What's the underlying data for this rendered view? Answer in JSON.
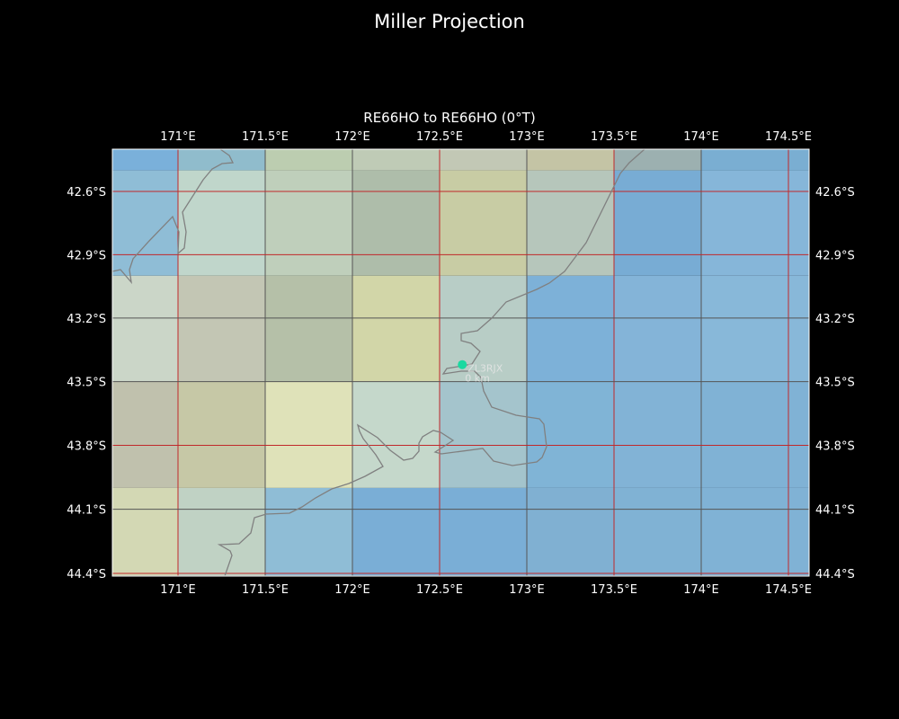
{
  "title": "Miller Projection",
  "subtitle": "RE66HO to RE66HO (0°T)",
  "extent": {
    "lon": [
      170.62,
      174.62
    ],
    "lat": [
      42.4,
      44.41
    ]
  },
  "lon_ticks": [
    {
      "value": 171,
      "label": "171°E",
      "grid": "red"
    },
    {
      "value": 171.5,
      "label": "171.5°E",
      "grid": "dark"
    },
    {
      "value": 172,
      "label": "172°E",
      "grid": "dark"
    },
    {
      "value": 172.5,
      "label": "172.5°E",
      "grid": "red"
    },
    {
      "value": 173,
      "label": "173°E",
      "grid": "dark"
    },
    {
      "value": 173.5,
      "label": "173.5°E",
      "grid": "red"
    },
    {
      "value": 174,
      "label": "174°E",
      "grid": "dark"
    },
    {
      "value": 174.5,
      "label": "174.5°E",
      "grid": "red"
    }
  ],
  "lat_ticks": [
    {
      "value": 42.6,
      "label": "42.6°S",
      "grid": "red"
    },
    {
      "value": 42.9,
      "label": "42.9°S",
      "grid": "red"
    },
    {
      "value": 43.2,
      "label": "43.2°S",
      "grid": "dark"
    },
    {
      "value": 43.5,
      "label": "43.5°S",
      "grid": "dark"
    },
    {
      "value": 43.8,
      "label": "43.8°S",
      "grid": "red"
    },
    {
      "value": 44.1,
      "label": "44.1°S",
      "grid": "dark"
    },
    {
      "value": 44.4,
      "label": "44.4°S",
      "grid": "red"
    }
  ],
  "colors": {
    "red_grid": "#c0282a",
    "dark_grid": "#555555",
    "coast": "#808080",
    "marker": "#19d9a0"
  },
  "tile_lon_edges": [
    170.62,
    171,
    171.5,
    172,
    172.5,
    173,
    173.5,
    174,
    174.62
  ],
  "tile_lat_edges": [
    42.4,
    42.5,
    43.0,
    43.5,
    44.0,
    44.41
  ],
  "tiles": [
    [
      "#7ab0da",
      "#90bccc",
      "#bccdb0",
      "#bfcbb6",
      "#c2c8b5",
      "#c4c4a5",
      "#9cb0b0",
      "#7aaed2"
    ],
    [
      "#8fbdd6",
      "#c0d6cb",
      "#bfcfbb",
      "#aebdaa",
      "#c8cca4",
      "#b6c6bb",
      "#78acd4",
      "#86b6d9"
    ],
    [
      "#cbd6c8",
      "#c3c6b4",
      "#b5c0a8",
      "#d2d6a8",
      "#b8cdc6",
      "#7db1d8",
      "#84b4d8",
      "#88b8d9"
    ],
    [
      "#c0c1ad",
      "#c6c8a6",
      "#dfe2b9",
      "#c5d8cb",
      "#a4c4cc",
      "#80b4d6",
      "#82b3d6",
      "#80b2d5"
    ],
    [
      "#d3d8b4",
      "#c0d2c4",
      "#8fbdd6",
      "#7aaed6",
      "#7aaed6",
      "#80b0d2",
      "#80b2d4",
      "#80b2d5"
    ]
  ],
  "station": {
    "callsign": "ZL3RJX",
    "distance": "0 km",
    "lon": 172.63,
    "lat": 43.42
  }
}
